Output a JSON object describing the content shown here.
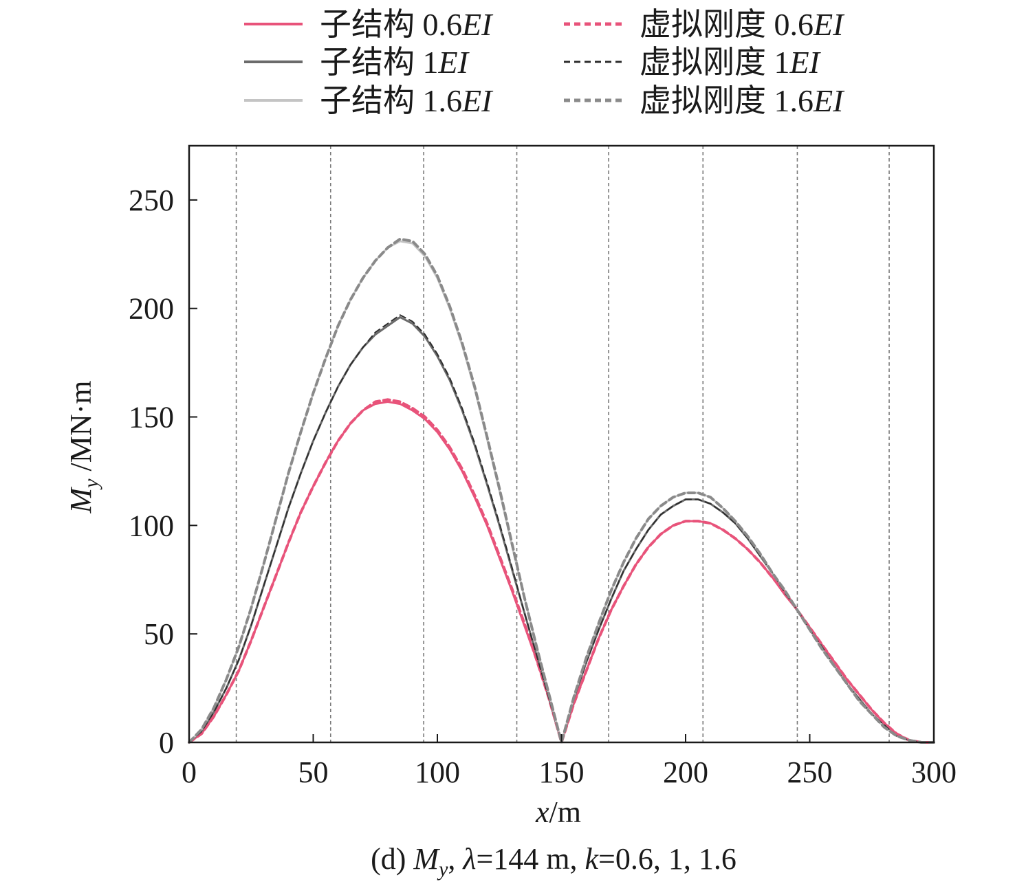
{
  "chart_data": {
    "type": "line",
    "xlabel": {
      "var": "x",
      "unit": "/m"
    },
    "ylabel": {
      "var": "M",
      "sub": "y",
      "unit": " /MN·m"
    },
    "xlim": [
      0,
      300
    ],
    "ylim": [
      0,
      275
    ],
    "xticks": [
      0,
      50,
      100,
      150,
      200,
      250,
      300
    ],
    "yticks": [
      0,
      50,
      100,
      150,
      200,
      250
    ],
    "grid": false,
    "legend_position": "top, outside plot, two columns",
    "vertical_reference_lines": [
      19,
      57,
      94.5,
      132,
      169,
      207,
      245,
      282
    ],
    "x": [
      0,
      5,
      10,
      15,
      20,
      25,
      30,
      35,
      40,
      45,
      50,
      55,
      60,
      65,
      70,
      75,
      80,
      85,
      90,
      95,
      100,
      105,
      110,
      115,
      120,
      125,
      130,
      135,
      140,
      145,
      150,
      155,
      160,
      165,
      170,
      175,
      180,
      185,
      190,
      195,
      200,
      205,
      210,
      215,
      220,
      225,
      230,
      235,
      240,
      245,
      250,
      255,
      260,
      265,
      270,
      275,
      280,
      285,
      290,
      295,
      300
    ],
    "series": [
      {
        "name_prefix": "子结构 ",
        "name_num": "0.6",
        "name_suffix": "EI",
        "style": "solid",
        "color": "#e8537a",
        "values": [
          0,
          4,
          12,
          22,
          33,
          47,
          62,
          77,
          92,
          106,
          118,
          129,
          139,
          147,
          153,
          156,
          157,
          156,
          153,
          149,
          143,
          135,
          125,
          113,
          100,
          85,
          70,
          54,
          38,
          20,
          0,
          18,
          33,
          48,
          61,
          72,
          82,
          90,
          96,
          100,
          102,
          102,
          101,
          98,
          94,
          89,
          83,
          76,
          68,
          61,
          53,
          45,
          37,
          29,
          22,
          15,
          9,
          4,
          1,
          0,
          0
        ]
      },
      {
        "name_prefix": "子结构 ",
        "name_num": "1",
        "name_suffix": "EI",
        "style": "solid",
        "color": "#6b6b6b",
        "values": [
          0,
          5,
          14,
          25,
          38,
          54,
          72,
          90,
          108,
          124,
          139,
          152,
          164,
          174,
          182,
          188,
          192,
          196,
          193,
          187,
          178,
          167,
          153,
          137,
          119,
          100,
          80,
          60,
          40,
          20,
          0,
          20,
          37,
          52,
          66,
          79,
          89,
          98,
          105,
          109,
          112,
          112,
          110,
          106,
          101,
          94,
          86,
          78,
          69,
          61,
          52,
          44,
          35,
          27,
          20,
          13,
          8,
          3,
          1,
          0,
          0
        ]
      },
      {
        "name_prefix": "子结构 ",
        "name_num": "1.6",
        "name_suffix": "EI",
        "style": "solid",
        "color": "#c4c4c4",
        "values": [
          0,
          6,
          16,
          29,
          44,
          62,
          82,
          103,
          124,
          143,
          161,
          177,
          192,
          204,
          214,
          222,
          228,
          231,
          230,
          224,
          214,
          200,
          183,
          163,
          140,
          116,
          91,
          67,
          44,
          22,
          0,
          21,
          39,
          55,
          70,
          83,
          94,
          103,
          109,
          113,
          115,
          115,
          113,
          108,
          102,
          95,
          87,
          78,
          70,
          61,
          52,
          43,
          35,
          27,
          19,
          13,
          7,
          3,
          1,
          0,
          0
        ]
      },
      {
        "name_prefix": "虚拟刚度 ",
        "name_num": "0.6",
        "name_suffix": "EI",
        "style": "dashed-thick",
        "color": "#e8537a",
        "values": [
          0,
          4,
          12,
          22,
          33,
          47,
          62,
          77,
          92,
          106,
          118,
          129,
          139,
          147,
          153,
          157,
          158,
          157,
          154,
          150,
          144,
          136,
          126,
          114,
          101,
          86,
          71,
          55,
          38,
          20,
          0,
          18,
          33,
          48,
          61,
          72,
          82,
          90,
          96,
          100,
          102,
          102,
          101,
          98,
          94,
          89,
          83,
          76,
          69,
          61,
          53,
          45,
          37,
          29,
          22,
          15,
          9,
          4,
          1,
          0,
          0
        ]
      },
      {
        "name_prefix": "虚拟刚度 ",
        "name_num": "1",
        "name_suffix": "EI",
        "style": "dashed-thin",
        "color": "#2e2e2e",
        "values": [
          0,
          5,
          14,
          25,
          38,
          54,
          72,
          90,
          108,
          124,
          139,
          152,
          164,
          174,
          182,
          189,
          193,
          197,
          194,
          188,
          179,
          168,
          154,
          138,
          120,
          101,
          81,
          60,
          40,
          20,
          0,
          20,
          37,
          52,
          66,
          79,
          89,
          98,
          105,
          109,
          112,
          112,
          110,
          106,
          101,
          94,
          86,
          78,
          69,
          61,
          52,
          44,
          35,
          27,
          20,
          13,
          8,
          3,
          1,
          0,
          0
        ]
      },
      {
        "name_prefix": "虚拟刚度 ",
        "name_num": "1.6",
        "name_suffix": "EI",
        "style": "dashed-thick",
        "color": "#8a8a8a",
        "values": [
          0,
          6,
          16,
          29,
          44,
          62,
          82,
          103,
          124,
          143,
          161,
          177,
          192,
          204,
          214,
          222,
          228,
          232,
          231,
          225,
          215,
          201,
          184,
          164,
          141,
          117,
          92,
          67,
          44,
          22,
          0,
          21,
          39,
          55,
          70,
          83,
          94,
          103,
          109,
          113,
          115,
          115,
          113,
          108,
          102,
          95,
          87,
          78,
          70,
          61,
          52,
          43,
          35,
          27,
          19,
          13,
          7,
          3,
          1,
          0,
          0
        ]
      }
    ]
  },
  "caption": {
    "prefix": "(d) ",
    "var": "M",
    "sub": "y",
    "text1": ", ",
    "lambda_sym": "λ",
    "text2": "=144 m, ",
    "k_sym": "k",
    "text3": "=0.6, 1, 1.6"
  }
}
